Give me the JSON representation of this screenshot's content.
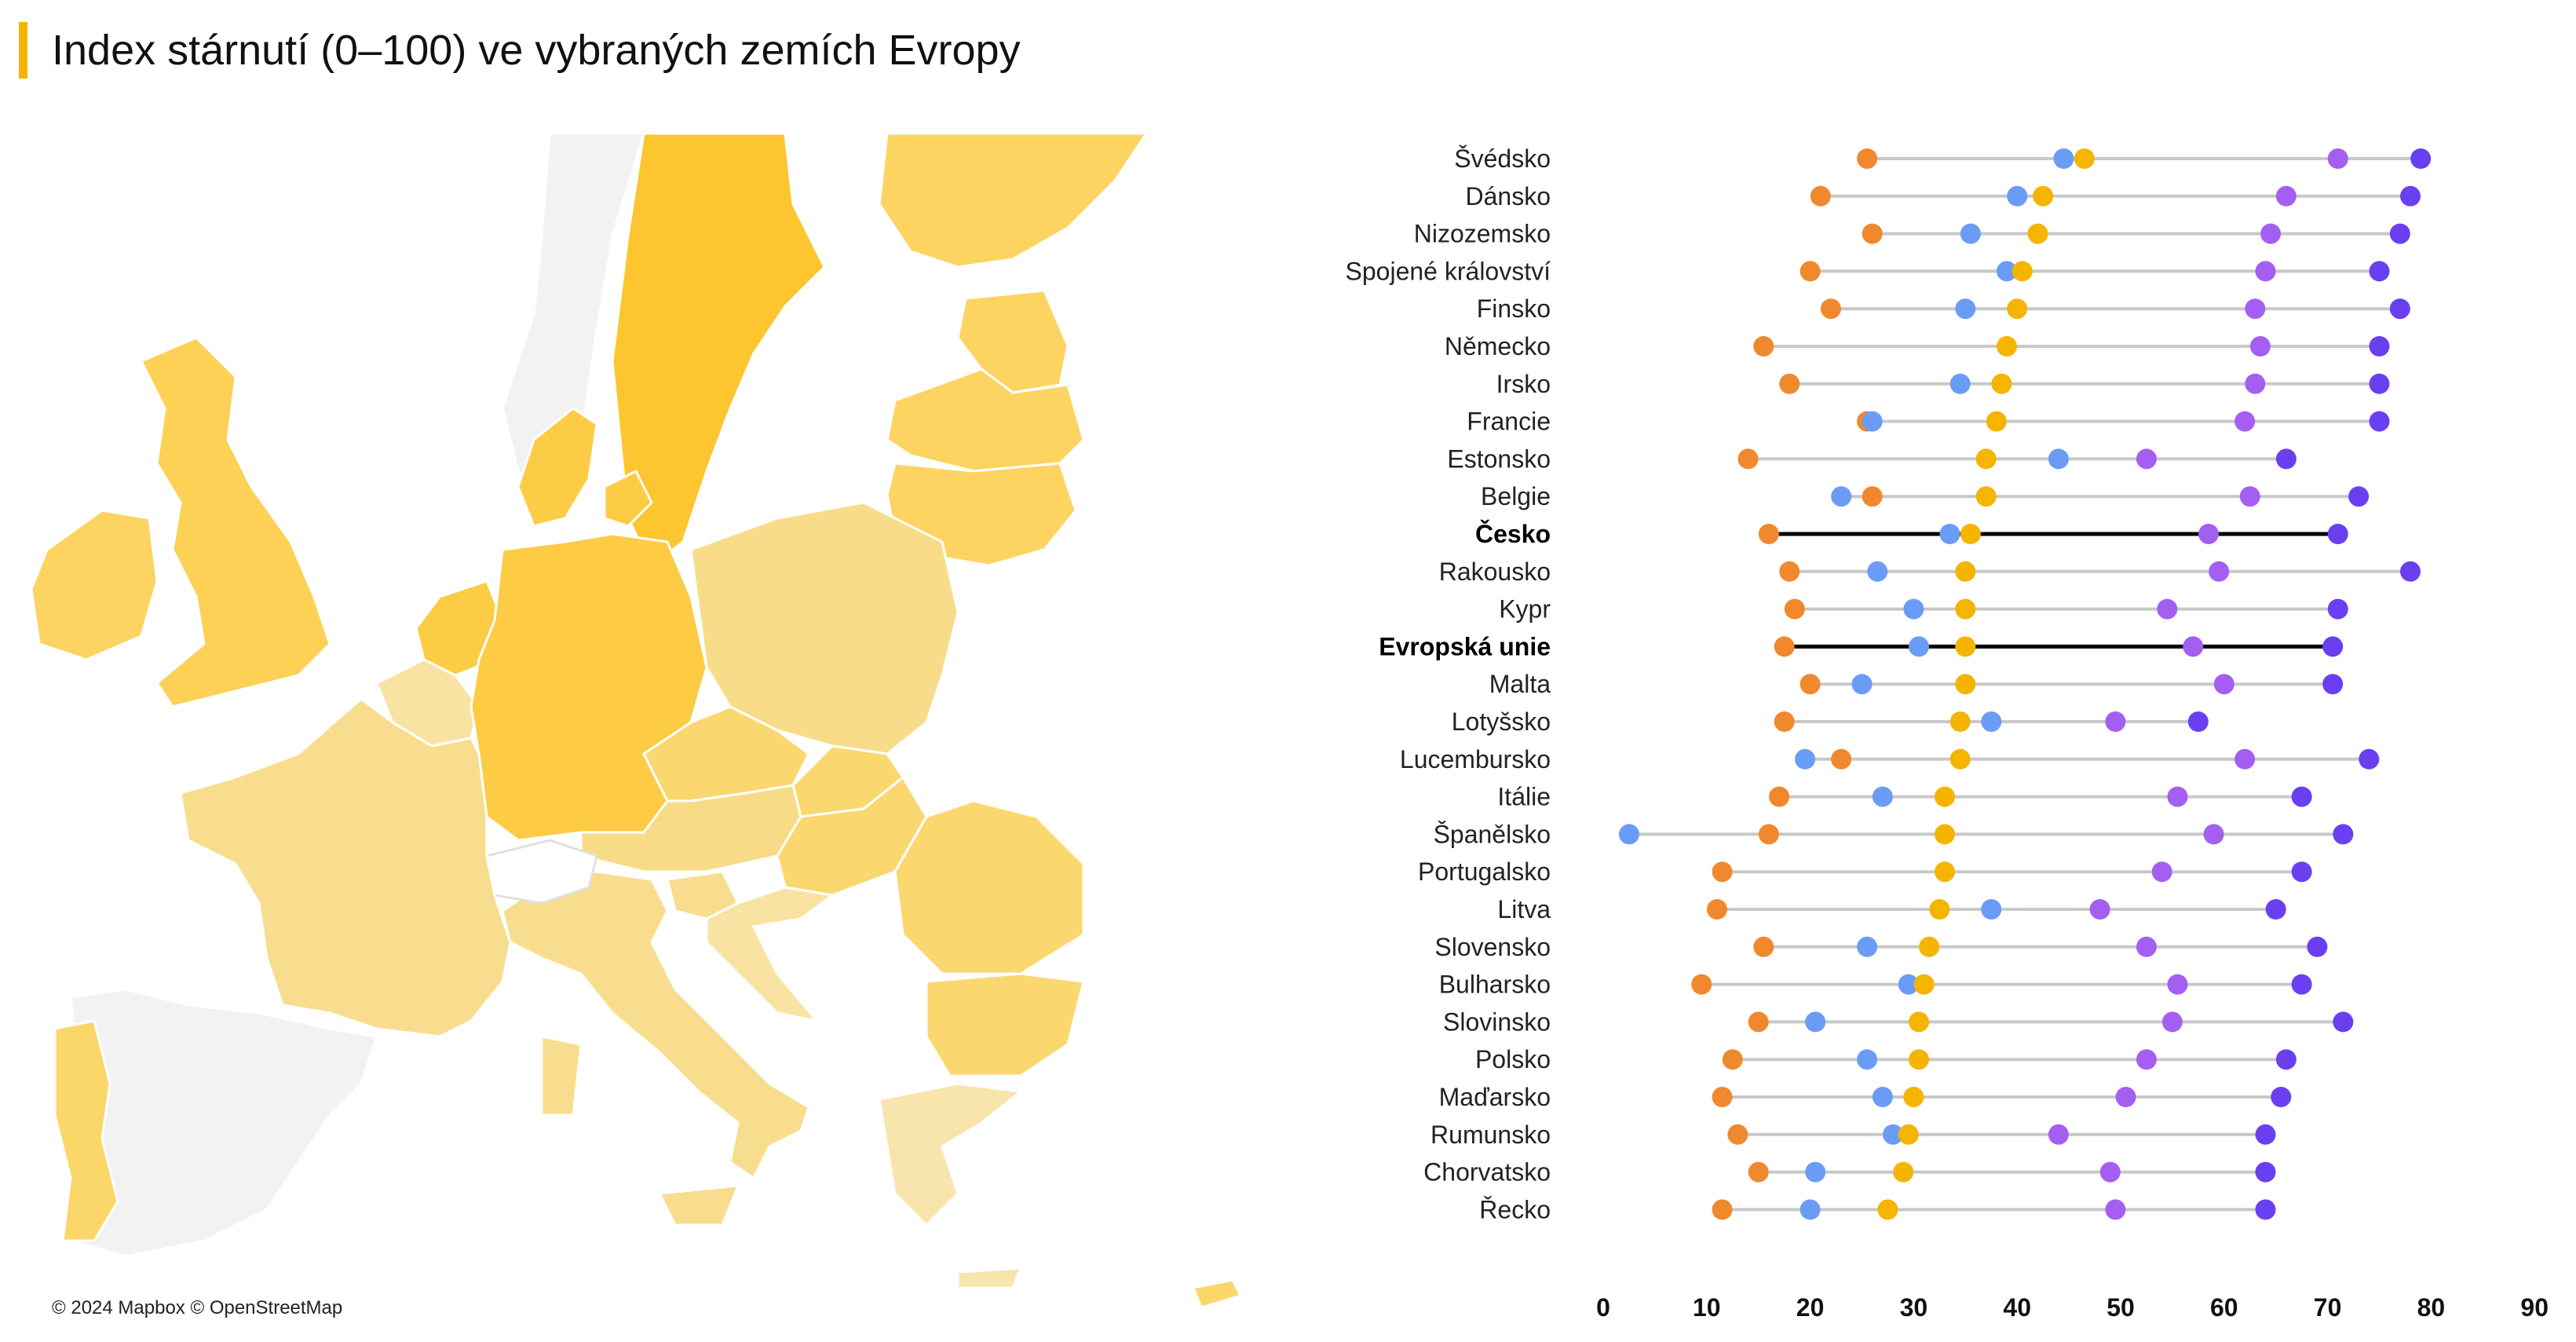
{
  "title": "Index stárnutí (0–100) ve vybraných zemích Evropy",
  "map_credit": "© 2024 Mapbox © OpenStreetMap",
  "colors": {
    "accent": "#f5b400",
    "s1": "#f0892d",
    "s2": "#6b9cf5",
    "s3": "#f5b400",
    "s4": "#a55ef2",
    "s5": "#6a3ff0",
    "range_line": "#c8c8c8",
    "highlight_line": "#000000"
  },
  "chart_data": {
    "type": "scatter",
    "subtype": "dot-range",
    "x_ticks": [
      "0",
      "10",
      "20",
      "30",
      "40",
      "50",
      "60",
      "70",
      "80",
      "90"
    ],
    "xlim": [
      0,
      90
    ],
    "grid": false,
    "legend": "none",
    "highlighted": [
      "Česko",
      "Evropská unie"
    ],
    "categories": [
      "Švédsko",
      "Dánsko",
      "Nizozemsko",
      "Spojené království",
      "Finsko",
      "Německo",
      "Irsko",
      "Francie",
      "Estonsko",
      "Belgie",
      "Česko",
      "Rakousko",
      "Kypr",
      "Evropská unie",
      "Malta",
      "Lotyšsko",
      "Lucembursko",
      "Itálie",
      "Španělsko",
      "Portugalsko",
      "Litva",
      "Slovensko",
      "Bulharsko",
      "Slovinsko",
      "Polsko",
      "Maďarsko",
      "Rumunsko",
      "Chorvatsko",
      "Řecko"
    ],
    "series": [
      {
        "color_key": "s1",
        "values": [
          25.5,
          21,
          26,
          20,
          22,
          15.5,
          18,
          25.5,
          14,
          26,
          16,
          18,
          18.5,
          17.5,
          20,
          17.5,
          23,
          17,
          16,
          11.5,
          11,
          15.5,
          9.5,
          15,
          12.5,
          11.5,
          13,
          15,
          11.5
        ]
      },
      {
        "color_key": "s2",
        "values": [
          44.5,
          40,
          35.5,
          39,
          35,
          null,
          34.5,
          26,
          44,
          23,
          33.5,
          26.5,
          30,
          30.5,
          25,
          37.5,
          19.5,
          27,
          2.5,
          null,
          37.5,
          25.5,
          29.5,
          20.5,
          25.5,
          27,
          28,
          20.5,
          20
        ]
      },
      {
        "color_key": "s3",
        "values": [
          46.5,
          42.5,
          42,
          40.5,
          40,
          39,
          38.5,
          38,
          37,
          37,
          35.5,
          35,
          35,
          35,
          35,
          34.5,
          34.5,
          33,
          33,
          33,
          32.5,
          31.5,
          31,
          30.5,
          30.5,
          30,
          29.5,
          29,
          27.5
        ]
      },
      {
        "color_key": "s4",
        "values": [
          71,
          66,
          64.5,
          64,
          63,
          63.5,
          63,
          62,
          52.5,
          62.5,
          58.5,
          59.5,
          54.5,
          57,
          60,
          49.5,
          62,
          55.5,
          59,
          54,
          48,
          52.5,
          55.5,
          55,
          52.5,
          50.5,
          44,
          49,
          49.5
        ]
      },
      {
        "color_key": "s5",
        "values": [
          79,
          78,
          77,
          75,
          77,
          75,
          75,
          75,
          66,
          73,
          71,
          78,
          71,
          70.5,
          70.5,
          57.5,
          74,
          67.5,
          71.5,
          67.5,
          65,
          69,
          67.5,
          71.5,
          66,
          65.5,
          64,
          64,
          64
        ]
      }
    ]
  },
  "map": {
    "countries": [
      {
        "name": "Švédsko",
        "color": "#fdc52f"
      },
      {
        "name": "Finsko",
        "color": "#fdd461"
      },
      {
        "name": "Norsko",
        "color": "#f2f2f2"
      },
      {
        "name": "Dánsko",
        "color": "#fdcc45"
      },
      {
        "name": "Spojené království",
        "color": "#fdd156"
      },
      {
        "name": "Irsko",
        "color": "#fdd461"
      },
      {
        "name": "Estonsko",
        "color": "#fdd461"
      },
      {
        "name": "Lotyšsko",
        "color": "#fdd461"
      },
      {
        "name": "Litva",
        "color": "#fdd461"
      },
      {
        "name": "Německo",
        "color": "#fdcb44"
      },
      {
        "name": "Nizozemsko",
        "color": "#fdcc45"
      },
      {
        "name": "Belgie",
        "color": "#f8e3a3"
      },
      {
        "name": "Francie",
        "color": "#f8dd8e"
      },
      {
        "name": "Polsko",
        "color": "#f8dc8a"
      },
      {
        "name": "Česko",
        "color": "#fbd770"
      },
      {
        "name": "Slovensko",
        "color": "#fbd770"
      },
      {
        "name": "Rakousko",
        "color": "#f8db86"
      },
      {
        "name": "Maďarsko",
        "color": "#fbd770"
      },
      {
        "name": "Rumunsko",
        "color": "#fbd770"
      },
      {
        "name": "Bulharsko",
        "color": "#fbd770"
      },
      {
        "name": "Itálie",
        "color": "#f8dd8e"
      },
      {
        "name": "Slovinsko",
        "color": "#f8dd8e"
      },
      {
        "name": "Chorvatsko",
        "color": "#f8e3a3"
      },
      {
        "name": "Řecko",
        "color": "#f8e4ad"
      },
      {
        "name": "Španělsko",
        "color": "#f2f2f2"
      },
      {
        "name": "Portugalsko",
        "color": "#fbd668"
      },
      {
        "name": "Švýcarsko",
        "color": "#ffffff"
      },
      {
        "name": "Kypr",
        "color": "#fbd668"
      }
    ]
  }
}
